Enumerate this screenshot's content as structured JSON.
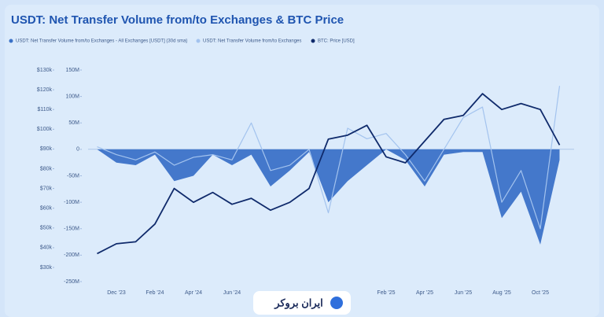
{
  "chart_data": {
    "type": "combo",
    "title": "USDT: Net Transfer Volume from/to Exchanges & BTC Price",
    "categories": [
      null,
      "Dec '23",
      null,
      "Feb '24",
      null,
      "Apr '24",
      null,
      "Jun '24",
      null,
      null,
      null,
      null,
      null,
      null,
      null,
      "Feb '25",
      null,
      "Apr '25",
      null,
      "Jun '25",
      null,
      "Aug '25",
      null,
      "Oct '25",
      null
    ],
    "series": [
      {
        "name": "USDT: Net Transfer Volume from/to Exchanges - All Exchanges [USDT] (30d sma)",
        "color": "#3b72c8",
        "axis": "y2",
        "values": [
          0,
          -25,
          -30,
          -10,
          -60,
          -50,
          -10,
          -30,
          -10,
          -70,
          -40,
          -5,
          -100,
          -60,
          -30,
          0,
          -20,
          -70,
          -10,
          -5,
          -5,
          -130,
          -80,
          -180,
          -20
        ]
      },
      {
        "name": "USDT: Net Transfer Volume from/to Exchanges",
        "color": "#a3c3ee",
        "axis": "y2",
        "values": [
          5,
          -10,
          -20,
          -5,
          -30,
          -15,
          -10,
          -20,
          50,
          -40,
          -30,
          0,
          -120,
          40,
          20,
          30,
          -10,
          -60,
          0,
          60,
          80,
          -100,
          -40,
          -150,
          120
        ]
      },
      {
        "name": "BTC: Price [USD]",
        "color": "#0f2a6b",
        "axis": "y",
        "values": [
          37000,
          42000,
          43000,
          52000,
          70000,
          63000,
          68000,
          62000,
          65000,
          59000,
          63000,
          70000,
          95000,
          97000,
          102000,
          86000,
          83000,
          94000,
          105000,
          107000,
          118000,
          110000,
          113000,
          110000,
          92000
        ]
      }
    ],
    "ylim": [
      30000,
      130000
    ],
    "yticks": [
      {
        "value": 30000,
        "label": "$30k"
      },
      {
        "value": 40000,
        "label": "$40k"
      },
      {
        "value": 50000,
        "label": "$50k"
      },
      {
        "value": 60000,
        "label": "$60k"
      },
      {
        "value": 70000,
        "label": "$70k"
      },
      {
        "value": 80000,
        "label": "$80k"
      },
      {
        "value": 90000,
        "label": "$90k"
      },
      {
        "value": 100000,
        "label": "$100k"
      },
      {
        "value": 110000,
        "label": "$110k"
      },
      {
        "value": 120000,
        "label": "$120k"
      },
      {
        "value": 130000,
        "label": "$130k"
      }
    ],
    "y2lim": [
      -250,
      150
    ],
    "y2ticks": [
      {
        "value": -250,
        "label": "-250M"
      },
      {
        "value": -200,
        "label": "-200M"
      },
      {
        "value": -150,
        "label": "-150M"
      },
      {
        "value": -100,
        "label": "-100M"
      },
      {
        "value": -50,
        "label": "-50M"
      },
      0,
      {
        "value": 50,
        "label": "50M"
      },
      {
        "value": 100,
        "label": "100M"
      },
      {
        "value": 150,
        "label": "150M"
      }
    ]
  },
  "footer_logo": "ایران بروکر"
}
